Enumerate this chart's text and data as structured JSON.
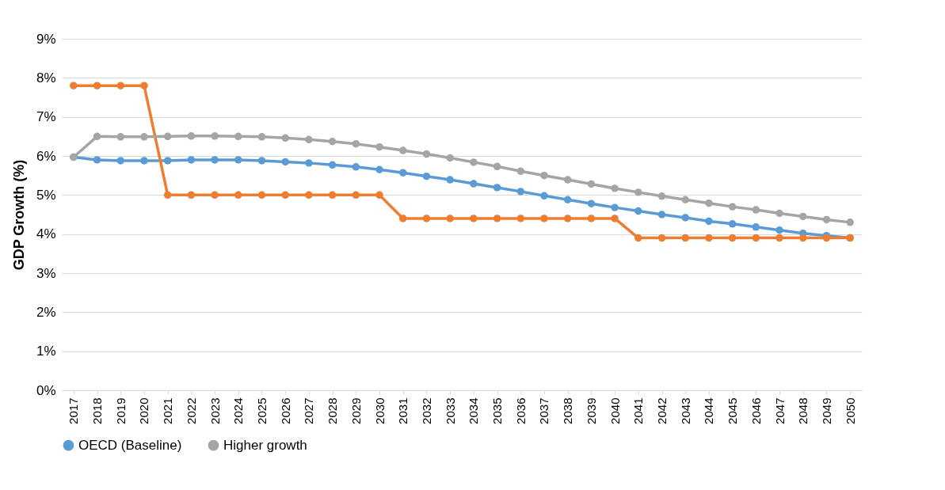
{
  "chart_data": {
    "type": "line",
    "ylabel": "GDP Growth (%)",
    "categories": [
      "2017",
      "2018",
      "2019",
      "2020",
      "2021",
      "2022",
      "2023",
      "2024",
      "2025",
      "2026",
      "2027",
      "2028",
      "2029",
      "2030",
      "2031",
      "2032",
      "2033",
      "2034",
      "2035",
      "2036",
      "2037",
      "2038",
      "2039",
      "2040",
      "2041",
      "2042",
      "2043",
      "2044",
      "2045",
      "2046",
      "2047",
      "2048",
      "2049",
      "2050"
    ],
    "series": [
      {
        "name": "OECD (Baseline)",
        "color": "#5b9bd5",
        "values": [
          5.97,
          5.9,
          5.88,
          5.88,
          5.88,
          5.9,
          5.9,
          5.9,
          5.88,
          5.85,
          5.82,
          5.77,
          5.72,
          5.65,
          5.57,
          5.48,
          5.39,
          5.29,
          5.19,
          5.09,
          4.98,
          4.88,
          4.78,
          4.68,
          4.59,
          4.5,
          4.42,
          4.33,
          4.26,
          4.18,
          4.1,
          4.02,
          3.96,
          3.9
        ]
      },
      {
        "color": "#ed7d31",
        "values": [
          7.8,
          7.8,
          7.8,
          7.8,
          5.0,
          5.0,
          5.0,
          5.0,
          5.0,
          5.0,
          5.0,
          5.0,
          5.0,
          5.0,
          4.4,
          4.4,
          4.4,
          4.4,
          4.4,
          4.4,
          4.4,
          4.4,
          4.4,
          4.4,
          3.9,
          3.9,
          3.9,
          3.9,
          3.9,
          3.9,
          3.9,
          3.9,
          3.9,
          3.9
        ]
      },
      {
        "name": "Higher growth",
        "color": "#a5a5a5",
        "values": [
          5.97,
          6.5,
          6.49,
          6.49,
          6.5,
          6.51,
          6.51,
          6.5,
          6.49,
          6.46,
          6.42,
          6.37,
          6.31,
          6.23,
          6.14,
          6.05,
          5.95,
          5.84,
          5.73,
          5.61,
          5.5,
          5.39,
          5.28,
          5.17,
          5.07,
          4.97,
          4.88,
          4.79,
          4.7,
          4.62,
          4.53,
          4.45,
          4.37,
          4.3
        ]
      }
    ],
    "ylim": [
      0,
      9
    ],
    "yticks": [
      {
        "value": 0,
        "label": "0%"
      },
      {
        "value": 1,
        "label": "1%"
      },
      {
        "value": 2,
        "label": "2%"
      },
      {
        "value": 3,
        "label": "3%"
      },
      {
        "value": 4,
        "label": "4%"
      },
      {
        "value": 5,
        "label": "5%"
      },
      {
        "value": 6,
        "label": "6%"
      },
      {
        "value": 7,
        "label": "7%"
      },
      {
        "value": 8,
        "label": "8%"
      },
      {
        "value": 9,
        "label": "9%"
      }
    ],
    "grid": "y",
    "legend": "bottom",
    "marker": "circle",
    "line_style": "solid"
  }
}
